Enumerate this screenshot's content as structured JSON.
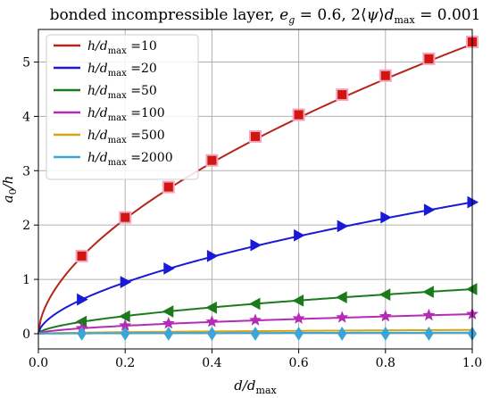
{
  "chart_data": {
    "type": "line",
    "title": "bonded incompressible layer, e_g = 0.6, 2⟨ψ⟩d_max = 0.001",
    "xlabel": "d/d_max",
    "ylabel": "a_0/h",
    "xlim": [
      0.0,
      1.0
    ],
    "ylim": [
      -0.28,
      5.6
    ],
    "xticks": [
      0.0,
      0.2,
      0.4,
      0.6,
      0.8,
      1.0
    ],
    "xtick_labels": [
      "0.0",
      "0.2",
      "0.4",
      "0.6",
      "0.8",
      "1.0"
    ],
    "yticks": [
      0,
      1,
      2,
      3,
      4,
      5
    ],
    "ytick_labels": [
      "0",
      "1",
      "2",
      "3",
      "4",
      "5"
    ],
    "grid": true,
    "legend_position": "top-left",
    "series": [
      {
        "name": "h/d_max =10",
        "color": "#b5251a",
        "marker": "square",
        "marker_color": "#d0160f",
        "x": [
          0.1,
          0.2,
          0.3,
          0.4,
          0.5,
          0.6,
          0.7,
          0.8,
          0.9,
          1.0
        ],
        "y": [
          1.43,
          2.14,
          2.7,
          3.19,
          3.63,
          4.03,
          4.4,
          4.75,
          5.06,
          5.37
        ],
        "curve_coef": 5.33,
        "curve_exp": 0.575
      },
      {
        "name": "h/d_max =20",
        "color": "#1a1ad6",
        "marker": "triangle-right",
        "marker_color": "#1a1ad6",
        "x": [
          0.1,
          0.2,
          0.3,
          0.4,
          0.5,
          0.6,
          0.7,
          0.8,
          0.9,
          1.0
        ],
        "y": [
          0.63,
          0.95,
          1.2,
          1.43,
          1.63,
          1.81,
          1.98,
          2.14,
          2.28,
          2.42
        ],
        "curve_coef": 2.42,
        "curve_exp": 0.585
      },
      {
        "name": "h/d_max =50",
        "color": "#1c7a1c",
        "marker": "triangle-left",
        "marker_color": "#1c7a1c",
        "x": [
          0.1,
          0.2,
          0.3,
          0.4,
          0.5,
          0.6,
          0.7,
          0.8,
          0.9,
          1.0
        ],
        "y": [
          0.22,
          0.32,
          0.41,
          0.48,
          0.55,
          0.61,
          0.67,
          0.72,
          0.77,
          0.82
        ],
        "curve_coef": 0.82,
        "curve_exp": 0.575
      },
      {
        "name": "h/d_max =100",
        "color": "#b52bb5",
        "marker": "star",
        "marker_color": "#b52bb5",
        "x": [
          0.1,
          0.2,
          0.3,
          0.4,
          0.5,
          0.6,
          0.7,
          0.8,
          0.9,
          1.0
        ],
        "y": [
          0.1,
          0.15,
          0.19,
          0.22,
          0.25,
          0.28,
          0.3,
          0.32,
          0.34,
          0.36
        ],
        "curve_coef": 0.36,
        "curve_exp": 0.56
      },
      {
        "name": "h/d_max =500",
        "color": "#d4a514",
        "marker": "none",
        "marker_color": "#d4a514",
        "x": [],
        "y": [],
        "curve_coef": 0.07,
        "curve_exp": 0.55
      },
      {
        "name": "h/d_max =2000",
        "color": "#3aa6d8",
        "marker": "diamond",
        "marker_color": "#3aa6d8",
        "x": [
          0.1,
          0.2,
          0.3,
          0.4,
          0.5,
          0.6,
          0.7,
          0.8,
          0.9,
          1.0
        ],
        "y": [
          0.0,
          0.0,
          0.0,
          0.0,
          0.0,
          0.0,
          0.0,
          0.0,
          0.0,
          0.0
        ],
        "curve_coef": 0.02,
        "curve_exp": 0.55
      }
    ]
  }
}
